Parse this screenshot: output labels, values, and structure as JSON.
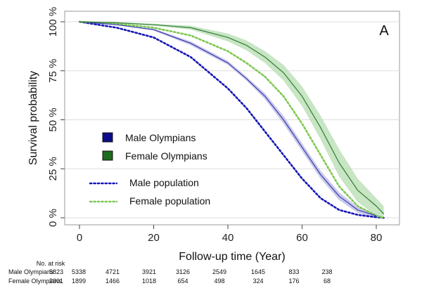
{
  "chart_data": {
    "type": "line",
    "panel_label": "A",
    "xlabel": "Follow-up time (Year)",
    "ylabel": "Survival probability",
    "xlim": [
      -5,
      85
    ],
    "ylim": [
      0,
      100
    ],
    "x_ticks": [
      0,
      20,
      40,
      60,
      80
    ],
    "y_ticks": [
      0,
      25,
      50,
      75,
      100
    ],
    "y_tick_labels": [
      "0 %",
      "25 %",
      "50 %",
      "75 %",
      "100 %"
    ],
    "grid": true,
    "legend_position": "lower-left",
    "series": [
      {
        "name": "Male Olympians",
        "style": "solid-with-ci",
        "color": "#3b3bb0",
        "band_color": "#b8b8e4",
        "x": [
          0,
          10,
          20,
          30,
          40,
          45,
          50,
          55,
          60,
          65,
          70,
          75,
          80
        ],
        "y": [
          100,
          98.5,
          96,
          89,
          79,
          71,
          62,
          50,
          36,
          22,
          11,
          4,
          1
        ],
        "ci_lower": [
          100,
          98.3,
          95.5,
          88,
          78,
          70,
          60.5,
          48,
          34,
          20,
          9,
          2.5,
          0
        ],
        "ci_upper": [
          100,
          98.7,
          96.5,
          90,
          80,
          72,
          63.5,
          52,
          38,
          24,
          13,
          5.5,
          2
        ]
      },
      {
        "name": "Female Olympians",
        "style": "solid-with-ci",
        "color": "#2e7d32",
        "band_color": "#b6dcb0",
        "x": [
          0,
          10,
          20,
          30,
          40,
          45,
          50,
          55,
          60,
          65,
          70,
          75,
          80,
          82
        ],
        "y": [
          100,
          99.5,
          98.5,
          97,
          92,
          88,
          82,
          74,
          62,
          46,
          28,
          14,
          6,
          2
        ],
        "ci_lower": [
          100,
          99.3,
          98,
          96,
          90,
          85.5,
          79,
          70,
          57,
          40,
          21,
          8,
          1,
          0
        ],
        "ci_upper": [
          100,
          99.7,
          99,
          98,
          94,
          90.5,
          85,
          78,
          67,
          52,
          35,
          20,
          10,
          6
        ]
      },
      {
        "name": "Male population",
        "style": "dotted",
        "color": "#1515b5",
        "x": [
          0,
          10,
          20,
          30,
          40,
          45,
          50,
          55,
          60,
          65,
          70,
          75,
          80,
          82
        ],
        "y": [
          100,
          97,
          92,
          82,
          66,
          56,
          44,
          32,
          20,
          10,
          4,
          1.5,
          0.3,
          0
        ]
      },
      {
        "name": "Female population",
        "style": "dotted",
        "color": "#7ec850",
        "x": [
          0,
          10,
          20,
          30,
          40,
          45,
          50,
          55,
          60,
          65,
          70,
          75,
          80,
          82
        ],
        "y": [
          100,
          99,
          97,
          93,
          85,
          79,
          72,
          62,
          48,
          32,
          16,
          6,
          1,
          0
        ]
      }
    ],
    "risk_table": {
      "title": "No. at risk",
      "times": [
        0,
        10,
        20,
        30,
        40,
        50,
        60,
        70,
        80
      ],
      "rows": [
        {
          "label": "Male Olympians",
          "values": [
            "5823",
            "5338",
            "4721",
            "3921",
            "3126",
            "2549",
            "1645",
            "833",
            "238"
          ]
        },
        {
          "label": "Female Olympians",
          "values": [
            "2301",
            "1899",
            "1466",
            "1018",
            "654",
            "498",
            "324",
            "176",
            "68"
          ]
        }
      ]
    }
  }
}
